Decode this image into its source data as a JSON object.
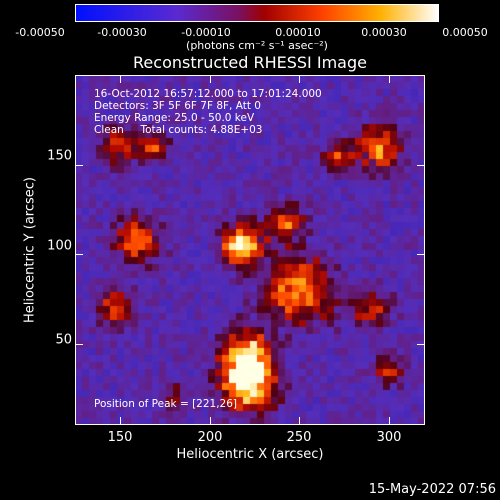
{
  "colorbar": {
    "ticks": [
      "-0.00050",
      "-0.00030",
      "-0.00010",
      "0.00010",
      "0.00030",
      "0.00050"
    ],
    "unit": "(photons cm⁻² s⁻¹ asec⁻²)"
  },
  "chart_data": {
    "type": "heatmap",
    "title": "Reconstructed RHESSI Image",
    "xlabel": "Heliocentric X (arcsec)",
    "ylabel": "Heliocentric Y (arcsec)",
    "xlim": [
      125,
      320
    ],
    "ylim": [
      5,
      200
    ],
    "xticks": [
      "150",
      "200",
      "250",
      "300"
    ],
    "yticks": [
      "50",
      "100",
      "150"
    ],
    "xtick_values": [
      150,
      200,
      250,
      300
    ],
    "ytick_values": [
      50,
      100,
      150
    ],
    "colorbar_range": [
      -0.0005,
      0.0005
    ],
    "colormap": "blue-purple-red-yellow-white",
    "peak_position": [
      221,
      26
    ],
    "sources": [
      {
        "x": 222,
        "y": 28,
        "intensity": 1.0,
        "spread": 14
      },
      {
        "x": 220,
        "y": 45,
        "intensity": 0.75,
        "spread": 13
      },
      {
        "x": 218,
        "y": 105,
        "intensity": 0.85,
        "spread": 11
      },
      {
        "x": 242,
        "y": 118,
        "intensity": 0.55,
        "spread": 10
      },
      {
        "x": 250,
        "y": 80,
        "intensity": 0.65,
        "spread": 18
      },
      {
        "x": 160,
        "y": 108,
        "intensity": 0.6,
        "spread": 12
      },
      {
        "x": 148,
        "y": 70,
        "intensity": 0.55,
        "spread": 10
      },
      {
        "x": 150,
        "y": 160,
        "intensity": 0.55,
        "spread": 9
      },
      {
        "x": 168,
        "y": 160,
        "intensity": 0.5,
        "spread": 8
      },
      {
        "x": 295,
        "y": 160,
        "intensity": 0.6,
        "spread": 12
      },
      {
        "x": 272,
        "y": 155,
        "intensity": 0.45,
        "spread": 8
      },
      {
        "x": 290,
        "y": 70,
        "intensity": 0.45,
        "spread": 10
      },
      {
        "x": 300,
        "y": 35,
        "intensity": 0.4,
        "spread": 8
      },
      {
        "x": 180,
        "y": 20,
        "intensity": 0.3,
        "spread": 8
      }
    ],
    "annotations": [
      "16-Oct-2012 16:57:12.000 to 17:01:24.000",
      "Detectors: 3F 5F 6F 7F 8F, Att 0",
      "Energy Range: 25.0 - 50.0 keV",
      "Clean     Total counts: 4.88E+03"
    ],
    "peak_label": "Position of Peak = [221,26]"
  },
  "footer": {
    "timestamp": "15-May-2022 07:56"
  }
}
